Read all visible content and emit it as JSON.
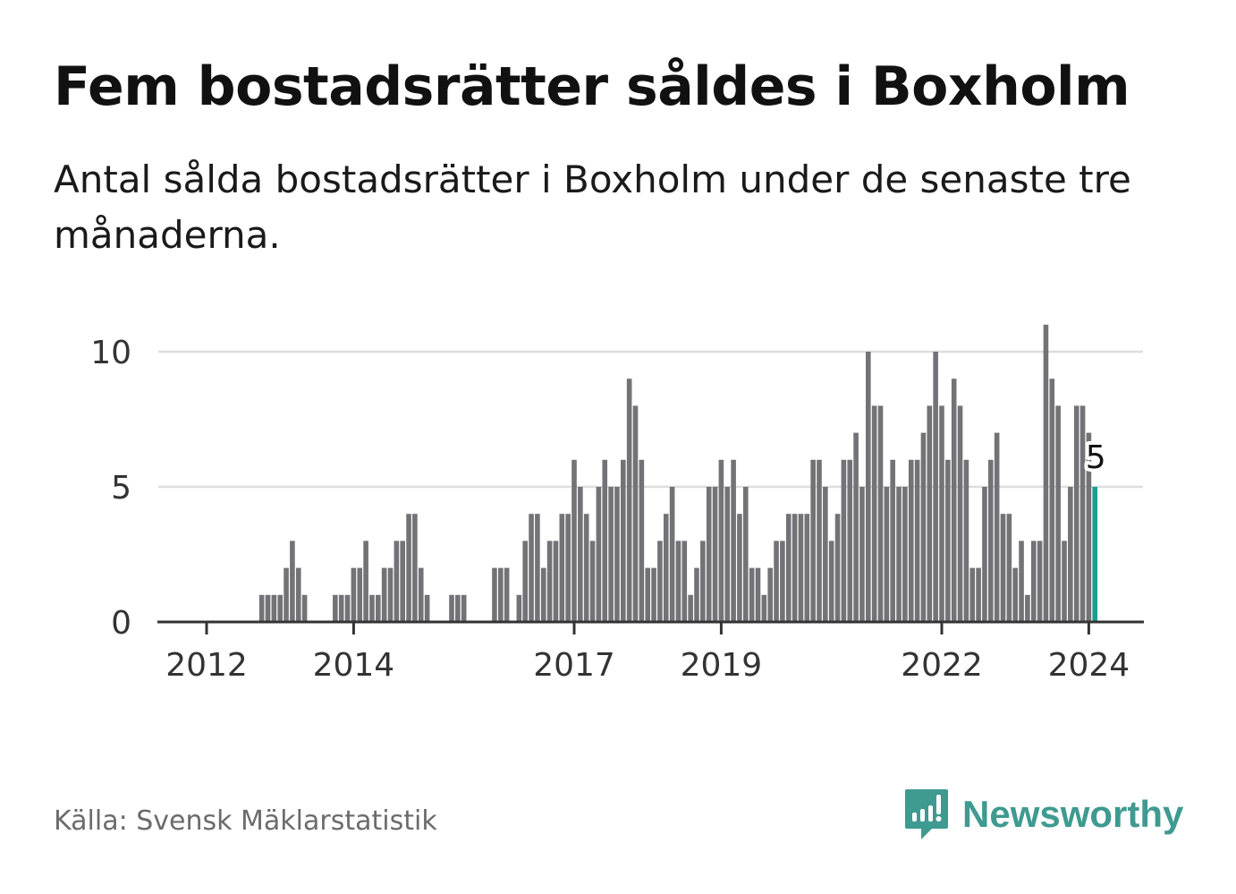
{
  "header": {
    "title": "Fem bostadsrätter såldes i Boxholm",
    "subtitle": "Antal sålda bostadsrätter i Boxholm under de senaste tre månaderna."
  },
  "footer": {
    "source": "Källa: Svensk Mäklarstatistik",
    "brand": "Newsworthy"
  },
  "colors": {
    "bar": "#737277",
    "highlight": "#1a9e91",
    "grid": "#dddddd",
    "axis": "#333333",
    "brand": "#3f9a90"
  },
  "chart_data": {
    "type": "bar",
    "title": "Fem bostadsrätter såldes i Boxholm",
    "xlabel": "",
    "ylabel": "",
    "start_month": "2011-06",
    "frequency": "monthly",
    "values": [
      0,
      0,
      0,
      0,
      0,
      0,
      0,
      0,
      0,
      0,
      0,
      0,
      0,
      0,
      0,
      0,
      1,
      1,
      1,
      1,
      2,
      3,
      2,
      1,
      0,
      0,
      0,
      0,
      1,
      1,
      1,
      2,
      2,
      3,
      1,
      1,
      2,
      2,
      3,
      3,
      4,
      4,
      2,
      1,
      0,
      0,
      0,
      1,
      1,
      1,
      0,
      0,
      0,
      0,
      2,
      2,
      2,
      0,
      1,
      3,
      4,
      4,
      2,
      3,
      3,
      4,
      4,
      6,
      5,
      4,
      3,
      5,
      6,
      5,
      5,
      6,
      9,
      8,
      6,
      2,
      2,
      3,
      4,
      5,
      3,
      3,
      1,
      2,
      3,
      5,
      5,
      6,
      5,
      6,
      4,
      5,
      2,
      2,
      1,
      2,
      3,
      3,
      4,
      4,
      4,
      4,
      6,
      6,
      5,
      3,
      4,
      6,
      6,
      7,
      5,
      10,
      8,
      8,
      5,
      6,
      5,
      5,
      6,
      6,
      7,
      8,
      10,
      8,
      6,
      9,
      8,
      6,
      2,
      2,
      5,
      6,
      7,
      4,
      4,
      2,
      3,
      1,
      3,
      3,
      11,
      9,
      8,
      3,
      5,
      8,
      8,
      7,
      5
    ],
    "highlight_last": true,
    "highlight_label": "5",
    "x_ticks": [
      "2012",
      "2014",
      "2017",
      "2019",
      "2022",
      "2024"
    ],
    "y_ticks": [
      "0",
      "5",
      "10"
    ],
    "ylim": [
      0,
      11
    ],
    "grid": true
  }
}
